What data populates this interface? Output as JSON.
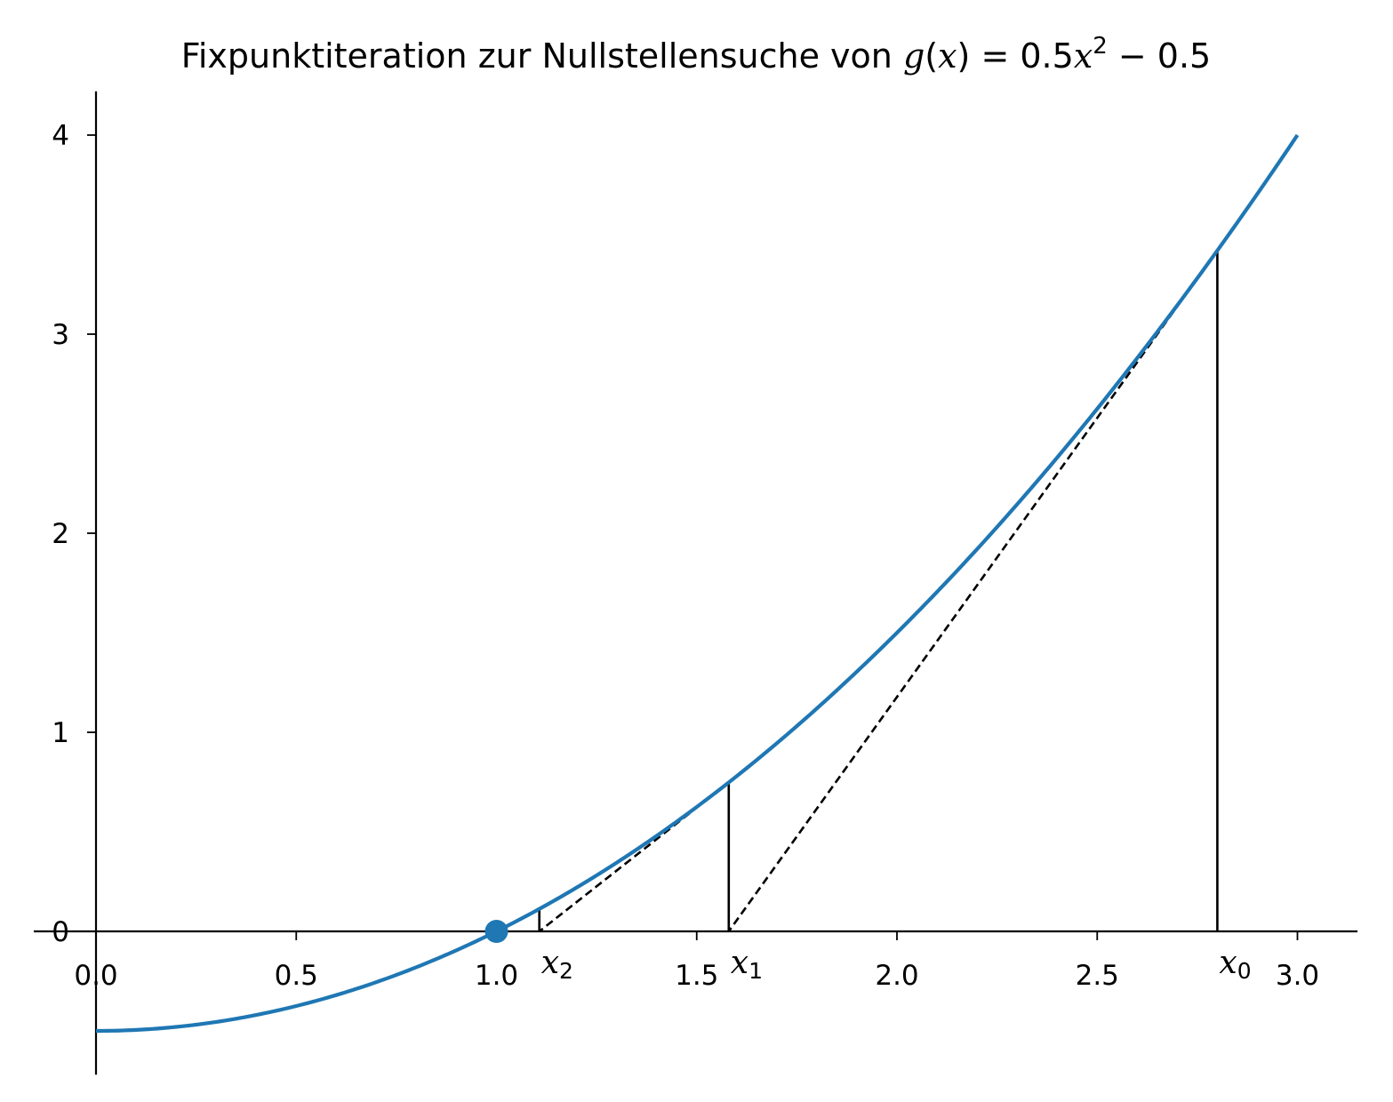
{
  "chart_data": {
    "type": "line",
    "title_prefix": "Fixpunktiteration zur Nullstellensuche von ",
    "title_math": {
      "g": "g",
      "x": "x",
      "eq_rhs_a": "0.5",
      "power": "2",
      "minus": "−",
      "eq_rhs_b": "0.5"
    },
    "title": "Fixpunktiteration zur Nullstellensuche von g(x) = 0.5x² − 0.5",
    "xlim": [
      0,
      3.15
    ],
    "ylim": [
      -0.72,
      4.22
    ],
    "x_ticks": [
      0.0,
      0.5,
      1.0,
      1.5,
      2.0,
      2.5,
      3.0
    ],
    "x_tick_labels": [
      "0.0",
      "0.5",
      "1.0",
      "1.5",
      "2.0",
      "2.5",
      "3.0"
    ],
    "y_ticks": [
      0,
      1,
      2,
      3,
      4
    ],
    "y_tick_labels": [
      "0",
      "1",
      "2",
      "3",
      "4"
    ],
    "grid": false,
    "curve": {
      "function": "0.5*x^2 - 0.5",
      "x_range": [
        0,
        3
      ],
      "color": "#1f77b4"
    },
    "root_point": {
      "x": 1.0,
      "y": 0.0,
      "color": "#1f77b4"
    },
    "iterations": [
      {
        "label_base": "x",
        "label_sub": "0",
        "x": 2.8,
        "gx": 3.42
      },
      {
        "label_base": "x",
        "label_sub": "1",
        "x": 1.58,
        "gx": 0.748
      },
      {
        "label_base": "x",
        "label_sub": "2",
        "x": 1.107,
        "gx": 0.113
      },
      {
        "label_base": "x",
        "label_sub": "",
        "x": 1.0,
        "gx": 0.0
      }
    ]
  }
}
